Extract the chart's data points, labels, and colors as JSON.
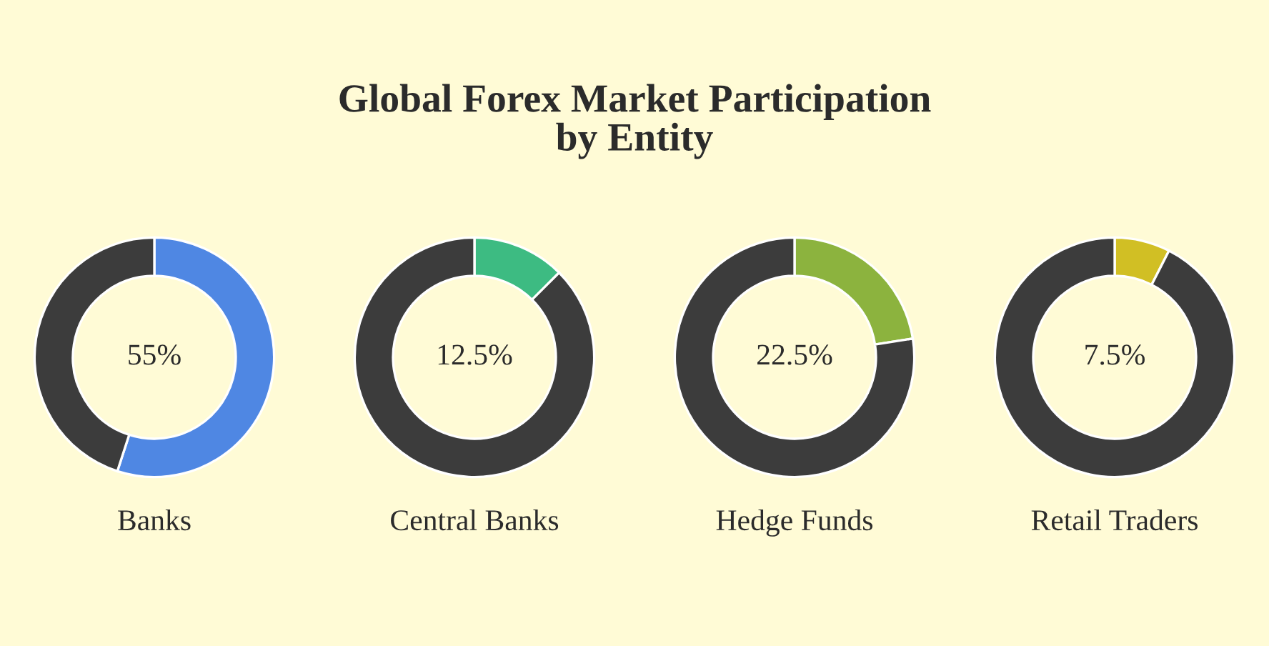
{
  "chart_data": [
    {
      "type": "donut",
      "title": "Global Forex Market Participation\nby Entity",
      "xlabel": "Banks",
      "categories": [
        null,
        null
      ],
      "values": [
        55,
        45
      ],
      "colors": [
        "#4f87e3",
        "#3c3c3c"
      ],
      "value_labels": [
        "55%",
        null
      ]
    },
    {
      "type": "donut",
      "xlabel": "Central Banks",
      "categories": [
        null,
        null
      ],
      "values": [
        12.5,
        87.5
      ],
      "colors": [
        "#3dbb82",
        "#3c3c3c"
      ],
      "value_labels": [
        "12.5%",
        null
      ]
    },
    {
      "type": "donut",
      "xlabel": "Hedge Funds",
      "categories": [
        null,
        null
      ],
      "values": [
        22.5,
        77.5
      ],
      "colors": [
        "#8cb33e",
        "#3c3c3c"
      ],
      "value_labels": [
        "22.5%",
        null
      ]
    },
    {
      "type": "donut",
      "xlabel": "Retail Traders",
      "categories": [
        null,
        null
      ],
      "values": [
        7.5,
        92.5
      ],
      "colors": [
        "#d1bf24",
        "#3c3c3c"
      ],
      "value_labels": [
        "7.5%",
        null
      ]
    }
  ]
}
